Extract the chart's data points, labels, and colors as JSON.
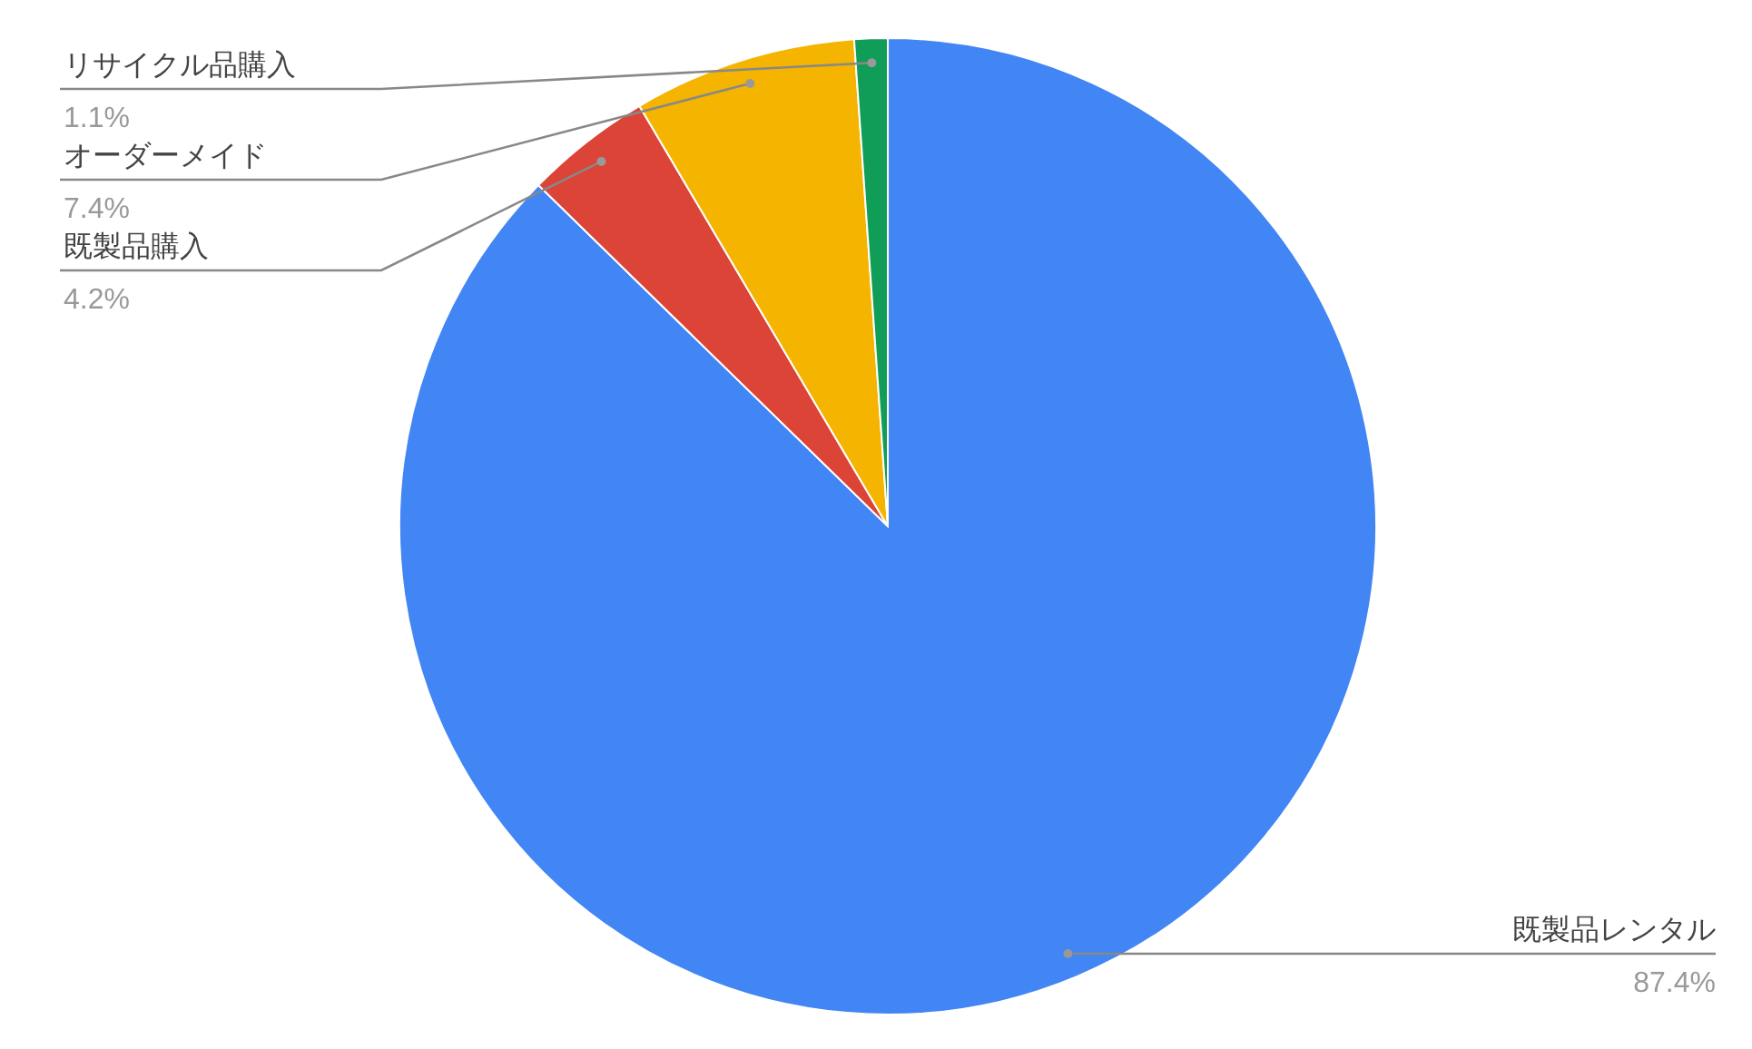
{
  "chart_data": {
    "type": "pie",
    "categories": [
      "既製品レンタル",
      "既製品購入",
      "オーダーメイド",
      "リサイクル品購入"
    ],
    "values": [
      87.4,
      4.2,
      7.4,
      1.1
    ],
    "colors": [
      "#4285f4",
      "#db4437",
      "#f4b400",
      "#0f9d58"
    ],
    "value_labels": [
      "87.4%",
      "4.2%",
      "7.4%",
      "1.1%"
    ]
  }
}
